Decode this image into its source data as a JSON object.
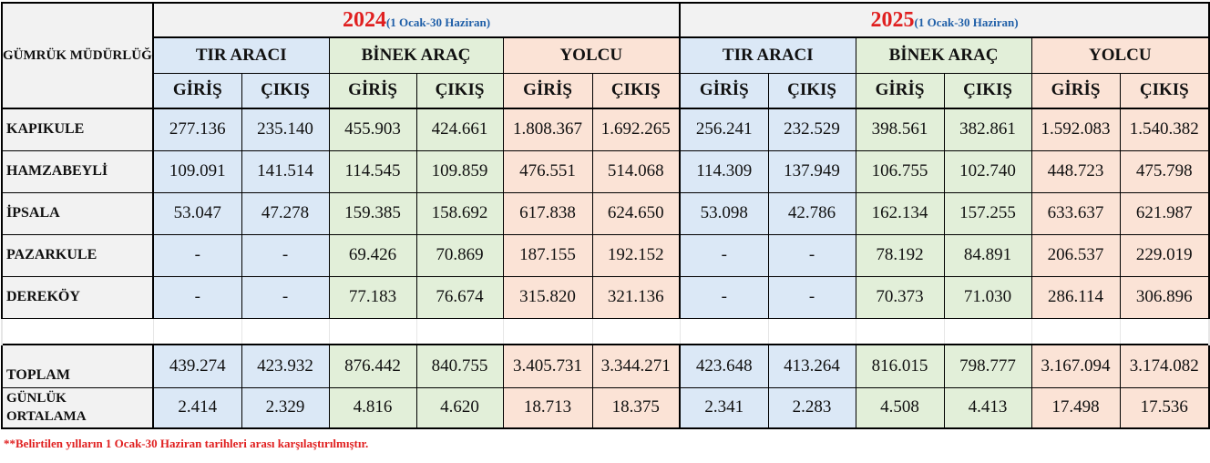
{
  "header": {
    "label": "GÜMRÜK MÜDÜRLÜĞÜ",
    "years": [
      {
        "year": "2024",
        "range": "(1 Ocak-30 Haziran)"
      },
      {
        "year": "2025",
        "range": "(1 Ocak-30 Haziran)"
      }
    ],
    "groups": [
      "TIR ARACI",
      "BİNEK ARAÇ",
      "YOLCU"
    ],
    "entry": "GİRİŞ",
    "exit": "ÇIKIŞ"
  },
  "rows": [
    {
      "name": "KAPIKULE",
      "values": [
        "277.136",
        "235.140",
        "455.903",
        "424.661",
        "1.808.367",
        "1.692.265",
        "256.241",
        "232.529",
        "398.561",
        "382.861",
        "1.592.083",
        "1.540.382"
      ]
    },
    {
      "name": "HAMZABEYLİ",
      "values": [
        "109.091",
        "141.514",
        "114.545",
        "109.859",
        "476.551",
        "514.068",
        "114.309",
        "137.949",
        "106.755",
        "102.740",
        "448.723",
        "475.798"
      ]
    },
    {
      "name": "İPSALA",
      "values": [
        "53.047",
        "47.278",
        "159.385",
        "158.692",
        "617.838",
        "624.650",
        "53.098",
        "42.786",
        "162.134",
        "157.255",
        "633.637",
        "621.987"
      ]
    },
    {
      "name": "PAZARKULE",
      "values": [
        "-",
        "-",
        "69.426",
        "70.869",
        "187.155",
        "192.152",
        "-",
        "-",
        "78.192",
        "84.891",
        "206.537",
        "229.019"
      ]
    },
    {
      "name": "DEREKÖY",
      "values": [
        "-",
        "-",
        "77.183",
        "76.674",
        "315.820",
        "321.136",
        "-",
        "-",
        "70.373",
        "71.030",
        "286.114",
        "306.896"
      ]
    }
  ],
  "total": {
    "name": "TOPLAM",
    "values": [
      "439.274",
      "423.932",
      "876.442",
      "840.755",
      "3.405.731",
      "3.344.271",
      "423.648",
      "413.264",
      "816.015",
      "798.777",
      "3.167.094",
      "3.174.082"
    ]
  },
  "average": {
    "name_line1": "GÜNLÜK",
    "name_line2": "ORTALAMA",
    "values": [
      "2.414",
      "2.329",
      "4.816",
      "4.620",
      "18.713",
      "18.375",
      "2.341",
      "2.283",
      "4.508",
      "4.413",
      "17.498",
      "17.536"
    ]
  },
  "note": "**Belirtilen yılların 1 Ocak-30 Haziran tarihleri arası karşılaştırılmıştır.",
  "colors": {
    "tir": "#dbe8f6",
    "binek": "#e2efd9",
    "yolcu": "#fbe3d6",
    "year": "#e02020",
    "range": "#1f5fa8",
    "note": "#e02020"
  }
}
